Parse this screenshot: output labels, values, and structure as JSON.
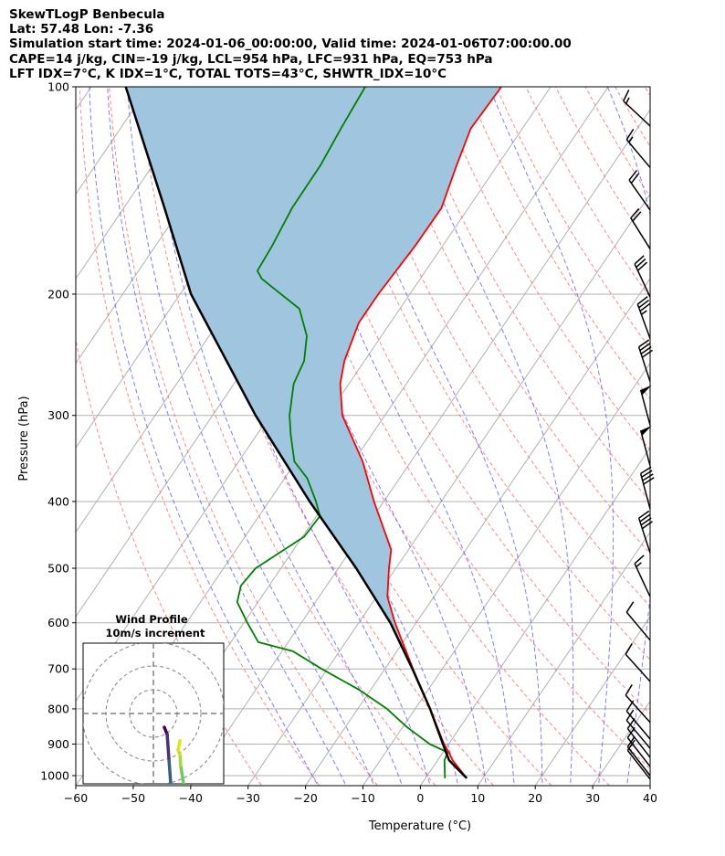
{
  "header": {
    "line1": "SkewTLogP Benbecula",
    "line2": "Lat: 57.48   Lon: -7.36",
    "line3": "Simulation start time: 2024-01-06_00:00:00, Valid time: 2024-01-06T07:00:00.00",
    "line4": "CAPE=14 j/kg, CIN=-19 j/kg, LCL=954 hPa, LFC=931 hPa, EQ=753 hPa",
    "line5": "LFT IDX=7°C, K IDX=1°C, TOTAL TOTS=43°C, SHWTR_IDX=10°C"
  },
  "chart_data": {
    "type": "line",
    "subtype": "skew-T log-P",
    "xlabel": "Temperature (°C)",
    "ylabel": "Pressure (hPa)",
    "xlim": [
      -60,
      40
    ],
    "ylim": [
      1034,
      100
    ],
    "xticks": [
      -60,
      -50,
      -40,
      -30,
      -20,
      -10,
      0,
      10,
      20,
      30,
      40
    ],
    "yticks": [
      100,
      200,
      300,
      400,
      500,
      600,
      700,
      800,
      900,
      1000
    ],
    "grid": true,
    "colors": {
      "temperature": "#ff0000",
      "dewpoint": "#008000",
      "parcel": "#000000",
      "cape_cin_fill": "#a0c5de",
      "dry_adiabat": "#ff6666",
      "moist_adiabat": "#6666ff",
      "isotherm": "#b0b0b0"
    },
    "series": [
      {
        "name": "Temperature",
        "p": [
          1009,
          950,
          925,
          900,
          800,
          700,
          600,
          550,
          500,
          470,
          400,
          350,
          300,
          270,
          250,
          220,
          200,
          170,
          150,
          130,
          115,
          100
        ],
        "t": [
          7.2,
          2.6,
          1.0,
          -0.8,
          -7.4,
          -15.1,
          -23.7,
          -28.1,
          -31.2,
          -33.0,
          -41.7,
          -48.4,
          -57.4,
          -61.5,
          -63.5,
          -65.5,
          -65.5,
          -64.8,
          -64.7,
          -67.1,
          -69.0,
          -68.6
        ]
      },
      {
        "name": "Dewpoint",
        "p": [
          1009,
          950,
          925,
          900,
          850,
          800,
          750,
          700,
          660,
          640,
          600,
          560,
          530,
          500,
          450,
          420,
          400,
          370,
          350,
          320,
          300,
          270,
          250,
          230,
          210,
          190,
          185,
          170,
          150,
          130,
          115,
          100
        ],
        "t": [
          3.4,
          1.2,
          0.8,
          -3.3,
          -9.3,
          -14.9,
          -22.1,
          -31.0,
          -38.1,
          -45.2,
          -49.4,
          -53.6,
          -54.9,
          -54.4,
          -49.7,
          -49.4,
          -51.8,
          -56.1,
          -60.3,
          -64.1,
          -66.6,
          -69.6,
          -70.5,
          -73.0,
          -77.5,
          -87.6,
          -89.3,
          -89.7,
          -90.7,
          -90.8,
          -91.6,
          -92.3
        ]
      },
      {
        "name": "Parcel",
        "p": [
          1009,
          950,
          925,
          900,
          800,
          700,
          600,
          500,
          400,
          300,
          200,
          150,
          100
        ],
        "t": [
          7.2,
          2.0,
          0.5,
          -1.0,
          -7.4,
          -15.2,
          -24.5,
          -36.9,
          -52.9,
          -72.5,
          -98.1,
          -112.9,
          -134.0
        ]
      }
    ],
    "wind_barbs": {
      "units": "knots",
      "p": [
        114,
        131,
        151,
        172,
        202,
        232,
        268,
        310,
        355,
        410,
        475,
        550,
        636,
        730,
        837,
        885,
        913,
        941,
        970,
        1000,
        1012
      ],
      "dir": [
        313,
        320,
        325,
        328,
        335,
        340,
        342,
        345,
        345,
        345,
        342,
        335,
        320,
        318,
        318,
        320,
        320,
        322,
        322,
        322,
        322
      ],
      "speed": [
        15,
        15,
        20,
        20,
        30,
        35,
        40,
        50,
        50,
        40,
        40,
        15,
        10,
        10,
        10,
        10,
        10,
        10,
        10,
        10,
        10
      ]
    },
    "hodograph": {
      "title": "Wind Profile",
      "subtitle": "10m/s increment",
      "ring_step_ms": 10,
      "rings": [
        10,
        20,
        30
      ],
      "u": [
        4.6,
        5.8,
        6.6,
        7.3,
        8.0,
        13.5,
        12.7,
        11.5,
        11.2,
        10.4,
        11.2
      ],
      "v": [
        -5.8,
        -8.8,
        -20.0,
        -29.6,
        -36.0,
        -36.0,
        -29.6,
        -22.0,
        -17.3,
        -15.4,
        -11.5
      ],
      "colors": [
        "#440154",
        "#46327e",
        "#365c8d",
        "#277f8e",
        "#1fa187",
        "#4ac16d",
        "#6ccd5a",
        "#a0da39",
        "#c8e020",
        "#e2e418",
        "#fde725"
      ]
    }
  }
}
